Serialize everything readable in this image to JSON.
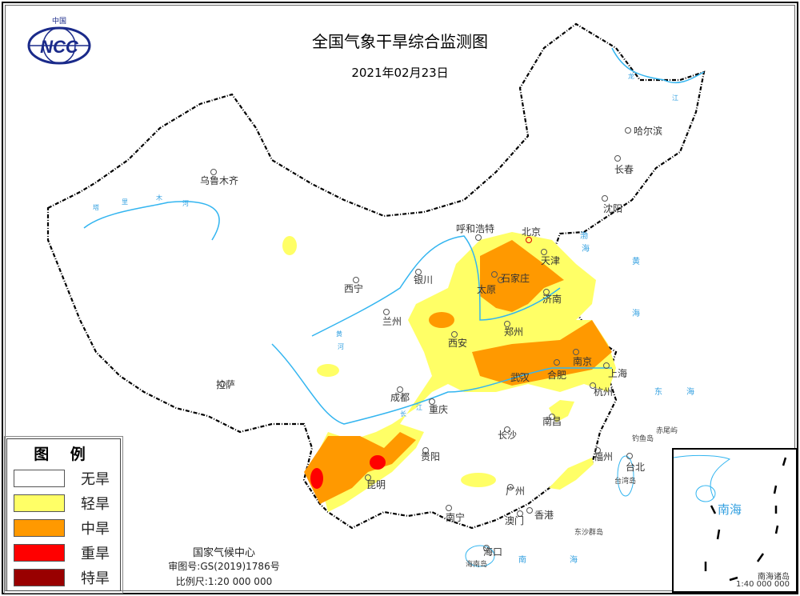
{
  "header": {
    "title": "全国气象干旱综合监测图",
    "date": "2021年02月23日",
    "logo_text": "NCC",
    "logo_top": "中国"
  },
  "legend": {
    "title": "图  例",
    "items": [
      {
        "label": "无旱",
        "color": "#FFFFFF"
      },
      {
        "label": "轻旱",
        "color": "#FFFF66"
      },
      {
        "label": "中旱",
        "color": "#FF9900"
      },
      {
        "label": "重旱",
        "color": "#FF0000"
      },
      {
        "label": "特旱",
        "color": "#990000"
      }
    ]
  },
  "credits": {
    "org": "国家气候中心",
    "approval": "审图号:GS(2019)1786号",
    "scale": "比例尺:1:20 000 000"
  },
  "inset": {
    "sea_label": "南海",
    "caption": "南海诸岛",
    "scale": "1:40 000 000"
  },
  "cities": [
    "乌鲁木齐",
    "哈尔滨",
    "长春",
    "沈阳",
    "呼和浩特",
    "北京",
    "天津",
    "石家庄",
    "太原",
    "济南",
    "银川",
    "西宁",
    "兰州",
    "西安",
    "郑州",
    "南京",
    "合肥",
    "上海",
    "武汉",
    "杭州",
    "拉萨",
    "成都",
    "重庆",
    "南昌",
    "长沙",
    "贵阳",
    "福州",
    "台北",
    "昆明",
    "广州",
    "南宁",
    "澳门",
    "香港",
    "海口"
  ],
  "places": [
    "台湾岛",
    "钓鱼岛",
    "赤尾屿",
    "东沙群岛",
    "海南岛"
  ],
  "seas": [
    "渤",
    "海",
    "黄",
    "海",
    "东",
    "海",
    "南",
    "海"
  ],
  "rivers": [
    "塔",
    "里",
    "木",
    "河",
    "黄",
    "河",
    "长",
    "江",
    "黑",
    "龙",
    "江"
  ],
  "colors": {
    "river": "#33B5F0",
    "border": "#000000",
    "province": "#888888"
  }
}
